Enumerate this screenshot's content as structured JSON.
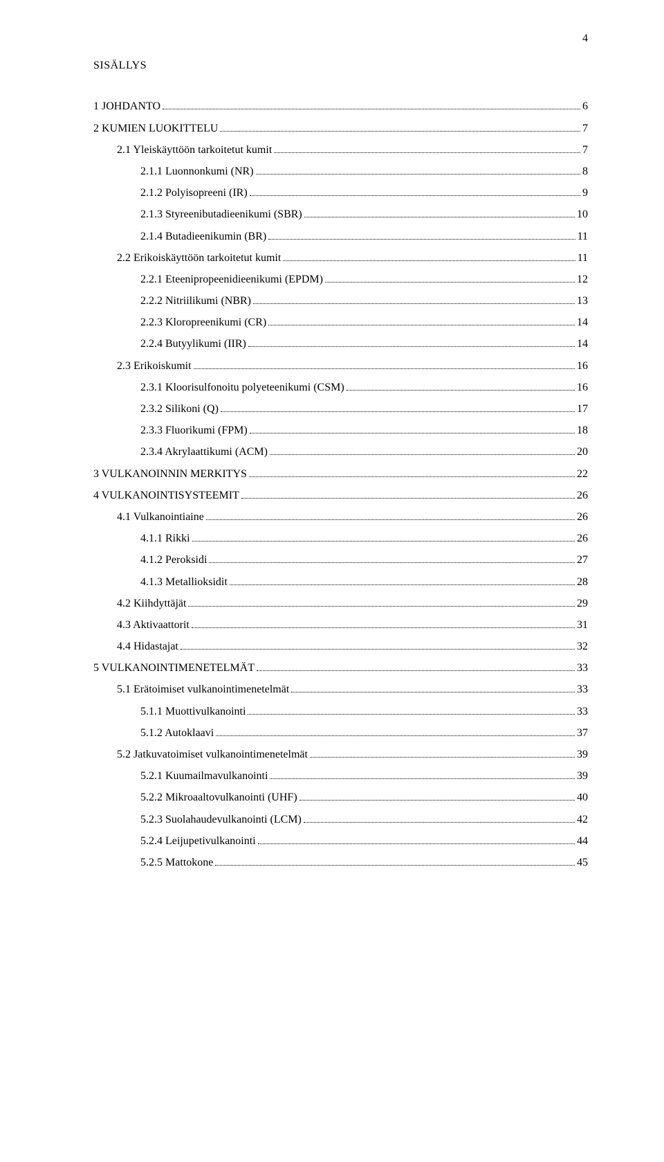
{
  "pageNumber": "4",
  "heading": "SISÄLLYS",
  "toc": [
    {
      "level": 0,
      "label": "1 JOHDANTO",
      "page": "6"
    },
    {
      "level": 0,
      "label": "2 KUMIEN LUOKITTELU",
      "page": "7"
    },
    {
      "level": 1,
      "label": "2.1  Yleiskäyttöön tarkoitetut kumit",
      "page": "7"
    },
    {
      "level": 2,
      "label": "2.1.1  Luonnonkumi (NR)",
      "page": "8"
    },
    {
      "level": 2,
      "label": "2.1.2  Polyisopreeni (IR)",
      "page": "9"
    },
    {
      "level": 2,
      "label": "2.1.3  Styreenibutadieenikumi (SBR)",
      "page": "10"
    },
    {
      "level": 2,
      "label": "2.1.4  Butadieenikumin (BR)",
      "page": "11"
    },
    {
      "level": 1,
      "label": "2.2  Erikoiskäyttöön tarkoitetut kumit",
      "page": "11"
    },
    {
      "level": 2,
      "label": "2.2.1  Eteenipropeenidieenikumi (EPDM)",
      "page": "12"
    },
    {
      "level": 2,
      "label": "2.2.2  Nitriilikumi (NBR)",
      "page": "13"
    },
    {
      "level": 2,
      "label": "2.2.3  Kloropreenikumi (CR)",
      "page": "14"
    },
    {
      "level": 2,
      "label": "2.2.4  Butyylikumi (IIR)",
      "page": "14"
    },
    {
      "level": 1,
      "label": "2.3  Erikoiskumit",
      "page": "16"
    },
    {
      "level": 2,
      "label": "2.3.1  Kloorisulfonoitu polyeteenikumi (CSM)",
      "page": "16"
    },
    {
      "level": 2,
      "label": "2.3.2  Silikoni (Q)",
      "page": "17"
    },
    {
      "level": 2,
      "label": "2.3.3  Fluorikumi (FPM)",
      "page": "18"
    },
    {
      "level": 2,
      "label": "2.3.4  Akrylaattikumi (ACM)",
      "page": "20"
    },
    {
      "level": 0,
      "label": "3  VULKANOINNIN MERKITYS",
      "page": "22"
    },
    {
      "level": 0,
      "label": "4 VULKANOINTISYSTEEMIT",
      "page": "26"
    },
    {
      "level": 1,
      "label": "4.1  Vulkanointiaine",
      "page": "26"
    },
    {
      "level": 2,
      "label": "4.1.1  Rikki",
      "page": "26"
    },
    {
      "level": 2,
      "label": "4.1.2  Peroksidi",
      "page": "27"
    },
    {
      "level": 2,
      "label": "4.1.3  Metallioksidit",
      "page": "28"
    },
    {
      "level": 1,
      "label": "4.2  Kiihdyttäjät",
      "page": "29"
    },
    {
      "level": 1,
      "label": "4.3  Aktivaattorit",
      "page": "31"
    },
    {
      "level": 1,
      "label": "4.4  Hidastajat",
      "page": "32"
    },
    {
      "level": 0,
      "label": "5 VULKANOINTIMENETELMÄT",
      "page": "33"
    },
    {
      "level": 1,
      "label": "5.1  Erätoimiset vulkanointimenetelmät",
      "page": "33"
    },
    {
      "level": 2,
      "label": "5.1.1  Muottivulkanointi",
      "page": "33"
    },
    {
      "level": 2,
      "label": "5.1.2  Autoklaavi",
      "page": "37"
    },
    {
      "level": 1,
      "label": "5.2  Jatkuvatoimiset vulkanointimenetelmät",
      "page": "39"
    },
    {
      "level": 2,
      "label": "5.2.1  Kuumailmavulkanointi",
      "page": "39"
    },
    {
      "level": 2,
      "label": "5.2.2  Mikroaaltovulkanointi (UHF)",
      "page": "40"
    },
    {
      "level": 2,
      "label": "5.2.3  Suolahaudevulkanointi (LCM)",
      "page": "42"
    },
    {
      "level": 2,
      "label": "5.2.4  Leijupetivulkanointi",
      "page": "44"
    },
    {
      "level": 2,
      "label": "5.2.5  Mattokone",
      "page": "45"
    }
  ]
}
